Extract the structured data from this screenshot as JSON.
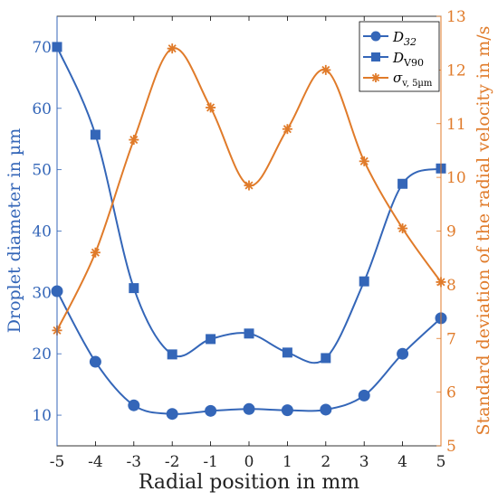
{
  "chart_data": {
    "type": "line",
    "xlabel": "Radial position in mm",
    "ylabel_left": "Droplet diameter in µm",
    "ylabel_right": "Standard deviation of the radial velocity in m/s",
    "xlim": [
      -5,
      5
    ],
    "ylim_left": [
      5,
      75
    ],
    "ylim_right": [
      5,
      13
    ],
    "x_ticks": [
      -5,
      -4,
      -3,
      -2,
      -1,
      0,
      1,
      2,
      3,
      4,
      5
    ],
    "y_ticks_left": [
      10,
      20,
      30,
      40,
      50,
      60,
      70
    ],
    "y_ticks_right": [
      5,
      6,
      7,
      8,
      9,
      10,
      11,
      12,
      13
    ],
    "grid": false,
    "legend_position": "top-right",
    "colors": {
      "left_axis": "#3466b8",
      "right_axis": "#e07b2a",
      "frame": "#000000"
    },
    "series": [
      {
        "name": "D32",
        "legend_main": "D",
        "legend_sub": "32",
        "axis": "left",
        "marker": "circle",
        "color": "#3466b8",
        "x": [
          -5,
          -4,
          -3,
          -2,
          -1,
          0,
          1,
          2,
          3,
          4,
          5
        ],
        "values": [
          30.2,
          18.7,
          11.6,
          10.2,
          10.7,
          11.0,
          10.8,
          10.9,
          13.2,
          20.0,
          25.8
        ]
      },
      {
        "name": "DV90",
        "legend_main": "D",
        "legend_sub": "V90",
        "axis": "left",
        "marker": "square",
        "color": "#3466b8",
        "x": [
          -5,
          -4,
          -3,
          -2,
          -1,
          0,
          1,
          2,
          3,
          4,
          5
        ],
        "values": [
          70.0,
          55.7,
          30.7,
          19.9,
          22.4,
          23.3,
          20.2,
          19.3,
          31.8,
          47.7,
          50.2
        ]
      },
      {
        "name": "σv,5µm",
        "legend_main": "σ",
        "legend_sub": "v, 5µm",
        "axis": "right",
        "marker": "asterisk",
        "color": "#e07b2a",
        "x": [
          -5,
          -4,
          -3,
          -2,
          -1,
          0,
          1,
          2,
          3,
          4,
          5
        ],
        "values": [
          7.15,
          8.6,
          10.7,
          12.4,
          11.3,
          9.85,
          10.9,
          12.0,
          10.3,
          9.05,
          8.05
        ]
      }
    ]
  }
}
